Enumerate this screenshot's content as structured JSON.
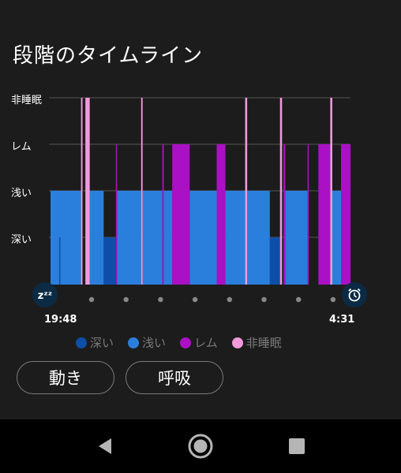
{
  "page": {
    "title": "段階のタイムライン",
    "start_time": "19:48",
    "end_time": "4:31",
    "sleep_icon_glyph": "zᶻᶻ",
    "sleep_icon": "sleep-zzz-icon",
    "alarm_icon": "alarm-clock-icon"
  },
  "buttons": {
    "movement": "動き",
    "breathing": "呼吸"
  },
  "nav": {
    "back": "back-icon",
    "home": "home-icon",
    "recents": "recents-icon"
  },
  "colors": {
    "deep": "#0d4fa8",
    "light": "#2a7fdc",
    "rem": "#aa11c4",
    "awake": "#f09adb"
  },
  "chart_data": {
    "type": "timeline",
    "title": "段階のタイムライン",
    "levels": [
      "非睡眠",
      "レム",
      "浅い",
      "深い"
    ],
    "x_range": [
      0,
      100
    ],
    "xlabel_start": "19:48",
    "xlabel_end": "4:31",
    "legend": [
      {
        "stage": "deep",
        "label": "深い"
      },
      {
        "stage": "light",
        "label": "浅い"
      },
      {
        "stage": "rem",
        "label": "レム"
      },
      {
        "stage": "awake",
        "label": "非睡眠"
      }
    ],
    "segments": [
      {
        "stage": "light",
        "start": 0,
        "end": 10.5
      },
      {
        "stage": "deep",
        "start": 3.0,
        "end": 3.4
      },
      {
        "stage": "awake",
        "start": 10.5,
        "end": 11.0
      },
      {
        "stage": "awake",
        "start": 12.0,
        "end": 13.5
      },
      {
        "stage": "light",
        "start": 13.5,
        "end": 18.3
      },
      {
        "stage": "deep",
        "start": 18.3,
        "end": 22.5
      },
      {
        "stage": "rem",
        "start": 22.5,
        "end": 22.9
      },
      {
        "stage": "light",
        "start": 22.9,
        "end": 31.2
      },
      {
        "stage": "awake",
        "start": 31.2,
        "end": 31.7
      },
      {
        "stage": "light",
        "start": 31.7,
        "end": 38.5
      },
      {
        "stage": "rem",
        "start": 38.5,
        "end": 39.0
      },
      {
        "stage": "light",
        "start": 39.0,
        "end": 41.9
      },
      {
        "stage": "rem",
        "start": 41.9,
        "end": 47.9
      },
      {
        "stage": "light",
        "start": 47.9,
        "end": 57.2
      },
      {
        "stage": "rem",
        "start": 57.2,
        "end": 60.2
      },
      {
        "stage": "light",
        "start": 60.2,
        "end": 67.0
      },
      {
        "stage": "awake",
        "start": 67.0,
        "end": 67.7
      },
      {
        "stage": "light",
        "start": 67.7,
        "end": 75.5
      },
      {
        "stage": "deep",
        "start": 75.5,
        "end": 79.0
      },
      {
        "stage": "awake",
        "start": 79.0,
        "end": 79.7
      },
      {
        "stage": "rem",
        "start": 80.2,
        "end": 80.8
      },
      {
        "stage": "light",
        "start": 80.8,
        "end": 88.5
      },
      {
        "stage": "rem",
        "start": 88.5,
        "end": 88.9
      },
      {
        "stage": "rem",
        "start": 92.2,
        "end": 96.3
      },
      {
        "stage": "awake",
        "start": 96.3,
        "end": 97.0
      },
      {
        "stage": "light",
        "start": 97.0,
        "end": 100
      }
    ],
    "extra": [
      {
        "stage": "rem",
        "start": 100,
        "end": 103.3
      }
    ]
  }
}
